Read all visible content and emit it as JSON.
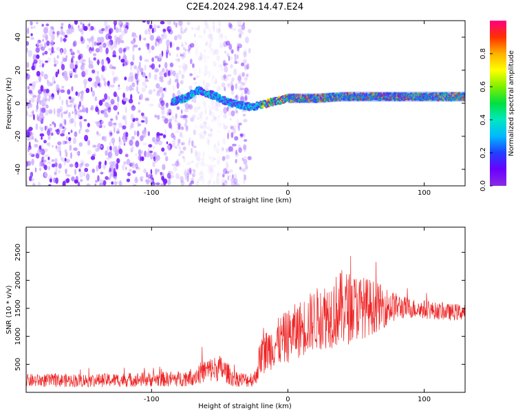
{
  "title": "C2E4.2024.298.14.47.E24",
  "chart_data": [
    {
      "type": "heatmap",
      "xlabel": "Height of straight line (km)",
      "ylabel": "Frequency (Hz)",
      "xlim": [
        -192,
        130
      ],
      "ylim": [
        -50,
        50
      ],
      "xticks": [
        "-100",
        "0",
        "100"
      ],
      "xtick_values": [
        -100,
        0,
        100
      ],
      "yticks": [
        "-40",
        "-20",
        "0",
        "20",
        "40"
      ],
      "ytick_values": [
        -40,
        -20,
        0,
        20,
        40
      ],
      "noise_region": [
        -192,
        -28
      ],
      "gap_region": [
        -68,
        -48
      ],
      "signal_start": -85,
      "signal_center_freq": [
        [
          -85,
          1
        ],
        [
          -80,
          2
        ],
        [
          -75,
          3
        ],
        [
          -70,
          6
        ],
        [
          -65,
          8
        ],
        [
          -60,
          6
        ],
        [
          -55,
          5
        ],
        [
          -50,
          3
        ],
        [
          -45,
          1
        ],
        [
          -40,
          0
        ],
        [
          -35,
          -1
        ],
        [
          -30,
          -2
        ],
        [
          -25,
          -2
        ],
        [
          -20,
          -1
        ],
        [
          -15,
          0
        ],
        [
          -10,
          1
        ],
        [
          -5,
          2
        ],
        [
          0,
          3
        ],
        [
          10,
          3
        ],
        [
          20,
          3
        ],
        [
          40,
          4
        ],
        [
          60,
          4
        ],
        [
          80,
          4
        ],
        [
          100,
          4
        ],
        [
          130,
          4
        ]
      ],
      "colorbar": {
        "label": "Normalized spectral amplitude",
        "ticks": [
          "0.0",
          "0.2",
          "0.4",
          "0.6",
          "0.8"
        ],
        "tick_values": [
          0.0,
          0.2,
          0.4,
          0.6,
          0.8
        ],
        "range": [
          0,
          1
        ]
      },
      "colors": {
        "noise": "#7a1fff",
        "noise_light": "#cfb3ff"
      }
    },
    {
      "type": "line",
      "xlabel": "Height of straight line (km)",
      "ylabel": "SNR (10 * v/v)",
      "xlim": [
        -192,
        130
      ],
      "ylim": [
        0,
        2950
      ],
      "xticks": [
        "-100",
        "0",
        "100"
      ],
      "xtick_values": [
        -100,
        0,
        100
      ],
      "yticks": [
        "500",
        "1000",
        "1500",
        "2000",
        "2500"
      ],
      "ytick_values": [
        500,
        1000,
        1500,
        2000,
        2500
      ],
      "line_color": "#ee2222",
      "envelope": [
        [
          -192,
          210,
          120
        ],
        [
          -140,
          215,
          120
        ],
        [
          -80,
          240,
          140
        ],
        [
          -70,
          280,
          160
        ],
        [
          -60,
          390,
          220
        ],
        [
          -50,
          430,
          240
        ],
        [
          -45,
          360,
          200
        ],
        [
          -40,
          250,
          150
        ],
        [
          -30,
          220,
          130
        ],
        [
          -24,
          250,
          150
        ],
        [
          -20,
          650,
          350
        ],
        [
          -10,
          850,
          420
        ],
        [
          0,
          1000,
          480
        ],
        [
          10,
          1150,
          520
        ],
        [
          20,
          1300,
          560
        ],
        [
          30,
          1400,
          620
        ],
        [
          40,
          1500,
          700
        ],
        [
          50,
          1520,
          600
        ],
        [
          60,
          1520,
          520
        ],
        [
          70,
          1530,
          380
        ],
        [
          80,
          1530,
          240
        ],
        [
          90,
          1500,
          180
        ],
        [
          100,
          1480,
          170
        ],
        [
          110,
          1450,
          150
        ],
        [
          120,
          1430,
          150
        ],
        [
          130,
          1440,
          150
        ]
      ]
    }
  ]
}
